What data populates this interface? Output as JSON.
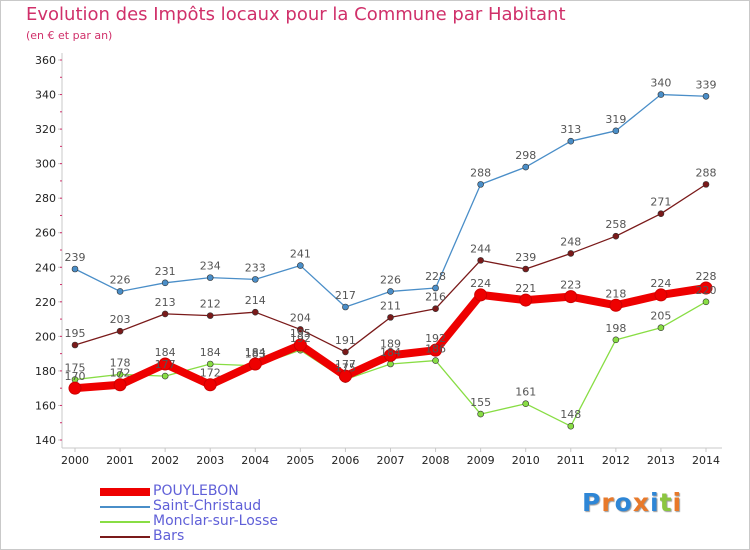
{
  "header": {
    "title": "Evolution des Impôts locaux pour la Commune par Habitant",
    "subtitle": "(en € et par an)"
  },
  "logo": {
    "text": "Proxiti"
  },
  "colors": {
    "title": "#d0306a",
    "axis": "#c8c8c8",
    "tick_marks": "#d0306a",
    "label_text": "#555555",
    "legend_text": "#6060d8"
  },
  "chart_data": {
    "type": "line",
    "title": "Evolution des Impôts locaux pour la Commune par Habitant",
    "subtitle": "(en € et par an)",
    "xlabel": "",
    "ylabel": "",
    "x": [
      "2000",
      "2001",
      "2002",
      "2003",
      "2004",
      "2005",
      "2006",
      "2007",
      "2008",
      "2009",
      "2010",
      "2011",
      "2012",
      "2013",
      "2014"
    ],
    "ylim": [
      140,
      360
    ],
    "yticks": [
      140,
      160,
      180,
      200,
      220,
      240,
      260,
      280,
      300,
      320,
      340,
      360
    ],
    "grid": false,
    "legend_position": "bottom-left",
    "series": [
      {
        "name": "POUYLEBON",
        "color": "#ee0000",
        "values": [
          170,
          172,
          184,
          172,
          184,
          195,
          177,
          189,
          192,
          224,
          221,
          223,
          218,
          224,
          228
        ],
        "labels": [
          "170",
          "172",
          "184",
          "172",
          "184",
          "195",
          "177",
          "189",
          "192",
          "224",
          "221",
          "223",
          "218",
          "224",
          "228"
        ]
      },
      {
        "name": "Saint-Christaud",
        "color": "#4a8ec8",
        "values": [
          239,
          226,
          231,
          234,
          233,
          241,
          217,
          226,
          228,
          288,
          298,
          313,
          319,
          340,
          339
        ],
        "labels": [
          "239",
          "226",
          "231",
          "234",
          "233",
          "241",
          "217",
          "226",
          "228",
          "288",
          "298",
          "313",
          "319",
          "340",
          "339"
        ]
      },
      {
        "name": "Monclar-sur-Losse",
        "color": "#88dd44",
        "values": [
          175,
          178,
          177,
          184,
          183,
          192,
          175,
          184,
          186,
          155,
          161,
          148,
          198,
          205,
          220
        ],
        "labels": [
          "175",
          "178",
          "177",
          "184",
          "183",
          "192",
          "175",
          "184",
          "186",
          "155",
          "161",
          "148",
          "198",
          "205",
          "220"
        ]
      },
      {
        "name": "Bars",
        "color": "#7a1a1a",
        "values": [
          195,
          203,
          213,
          212,
          214,
          204,
          191,
          211,
          216,
          244,
          239,
          248,
          258,
          271,
          288
        ],
        "labels": [
          "195",
          "203",
          "213",
          "212",
          "214",
          "204",
          "191",
          "211",
          "216",
          "244",
          "239",
          "248",
          "258",
          "271",
          "288"
        ]
      }
    ]
  }
}
